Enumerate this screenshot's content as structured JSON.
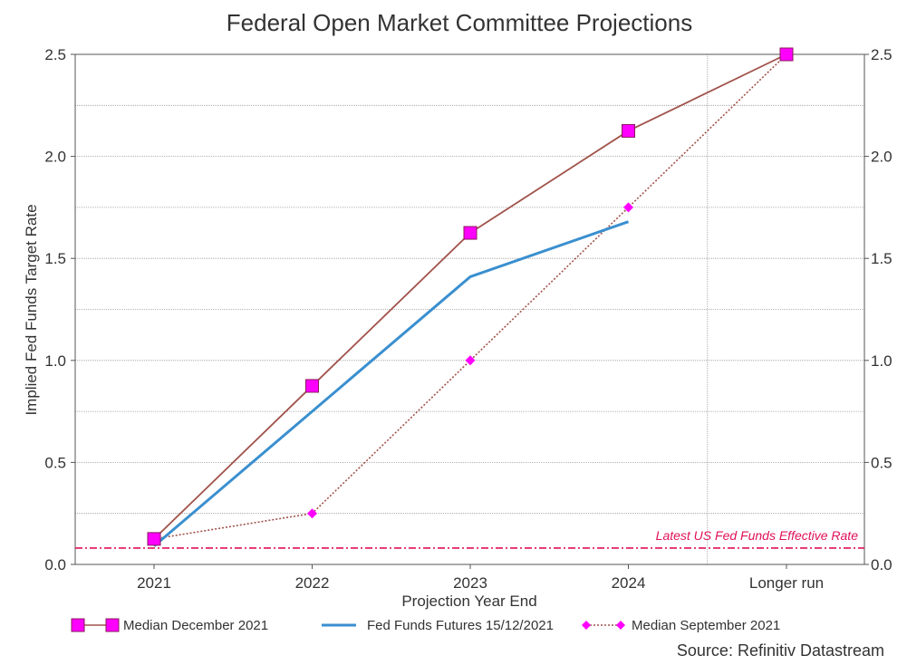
{
  "chart_data": {
    "type": "line",
    "title": "Federal Open Market Committee Projections",
    "xlabel": "Projection Year End",
    "ylabel": "Implied Fed Funds Target Rate",
    "categories": [
      "2021",
      "2022",
      "2023",
      "2024",
      "Longer run"
    ],
    "ylim": [
      0,
      2.5
    ],
    "yticks": [
      "0.0",
      "0.5",
      "1.0",
      "1.5",
      "2.0",
      "2.5"
    ],
    "secondary_y_axis": true,
    "grid": true,
    "series": [
      {
        "name": "Median December 2021",
        "values": [
          0.125,
          0.875,
          1.625,
          2.125,
          2.5
        ],
        "line_color": "#a0524a",
        "marker": "square",
        "marker_color": "#ff00ff",
        "line_style": "solid"
      },
      {
        "name": "Fed Funds Futures 15/12/2021",
        "values": [
          0.09,
          0.75,
          1.41,
          1.68,
          null
        ],
        "line_color": "#3a8fcf",
        "marker": "none",
        "line_style": "solid"
      },
      {
        "name": "Median September 2021",
        "values": [
          0.125,
          0.25,
          1.0,
          1.75,
          2.5
        ],
        "line_color": "#a0524a",
        "marker": "diamond",
        "marker_color": "#ff00ff",
        "line_style": "dotted"
      }
    ],
    "reference_line": {
      "label": "Latest US Fed Funds Effective Rate",
      "value": 0.08,
      "color": "#e0105a"
    },
    "legend_position": "bottom",
    "source": "Source: Refinitiv Datastream"
  }
}
